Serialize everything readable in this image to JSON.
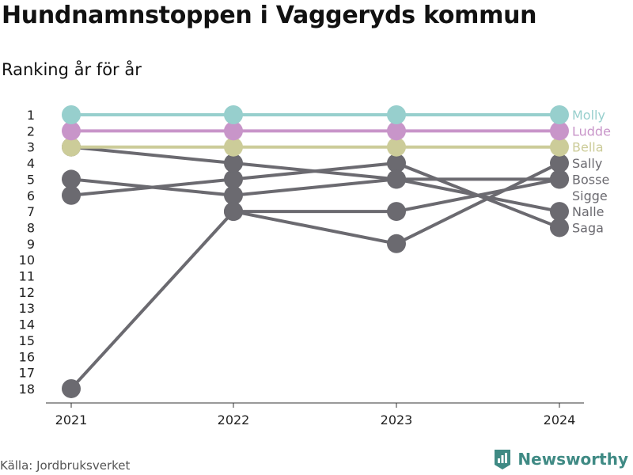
{
  "header": {
    "title": "Hundnamnstoppen i Vaggeryds kommun",
    "subtitle": "Ranking år för år"
  },
  "footer": {
    "source": "Källa: Jordbruksverket",
    "brand": "Newsworthy"
  },
  "colors": {
    "gray": "#6b6a70",
    "teal": "#97cfcd",
    "purple": "#c895c9",
    "olive": "#cccc99",
    "brand": "#3f8a84"
  },
  "chart_data": {
    "type": "line",
    "x": [
      "2021",
      "2022",
      "2023",
      "2024"
    ],
    "ylim": [
      1,
      18
    ],
    "y_reversed": true,
    "y_ticks": [
      "1",
      "2",
      "3",
      "4",
      "5",
      "6",
      "7",
      "8",
      "9",
      "10",
      "11",
      "12",
      "13",
      "14",
      "15",
      "16",
      "17",
      "18"
    ],
    "series": [
      {
        "name": "Sigge",
        "values": [
          18,
          7,
          7,
          5
        ],
        "color": "#6b6a70"
      },
      {
        "name": "Saga",
        "values": [
          6,
          5,
          4,
          8
        ],
        "color": "#6b6a70"
      },
      {
        "name": "Nalle",
        "values": [
          5,
          6,
          5,
          7
        ],
        "color": "#6b6a70"
      },
      {
        "name": "Bosse",
        "values": [
          3,
          4,
          5,
          5
        ],
        "color": "#6b6a70"
      },
      {
        "name": "Sally",
        "values": [
          null,
          7,
          9,
          4
        ],
        "color": "#6b6a70"
      },
      {
        "name": "Bella",
        "values": [
          3,
          3,
          3,
          3
        ],
        "color": "#cccc99"
      },
      {
        "name": "Ludde",
        "values": [
          2,
          2,
          2,
          2
        ],
        "color": "#c895c9"
      },
      {
        "name": "Molly",
        "values": [
          1,
          1,
          1,
          1
        ],
        "color": "#97cfcd"
      }
    ],
    "label_order": [
      "Molly",
      "Ludde",
      "Bella",
      "Sally",
      "Bosse",
      "Sigge",
      "Nalle",
      "Saga"
    ]
  }
}
